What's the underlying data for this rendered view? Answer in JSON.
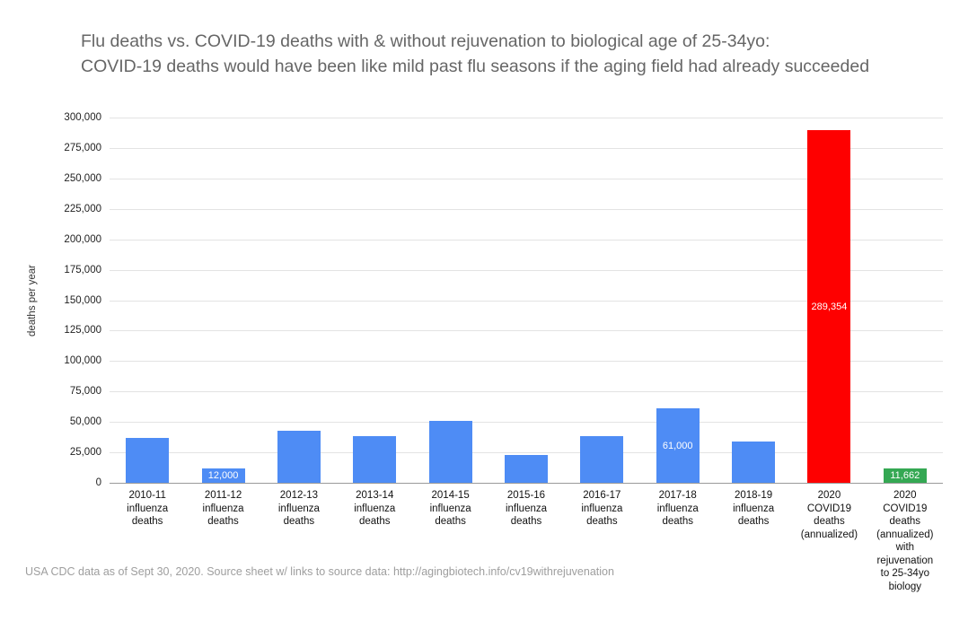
{
  "chart_data": {
    "type": "bar",
    "title_line1": "Flu deaths vs. COVID-19 deaths with & without rejuvenation to biological age of 25-34yo:",
    "title_line2": "COVID-19 deaths would have been like mild past flu seasons if the aging field had already succeeded",
    "ylabel": "deaths per year",
    "ylim": [
      0,
      300000
    ],
    "ytick_step": 25000,
    "ytick_labels": [
      "0",
      "25,000",
      "50,000",
      "75,000",
      "100,000",
      "125,000",
      "150,000",
      "175,000",
      "200,000",
      "225,000",
      "250,000",
      "275,000",
      "300,000"
    ],
    "grid": true,
    "legend": "none",
    "categories": [
      "2010-11\ninfluenza\ndeaths",
      "2011-12\ninfluenza\ndeaths",
      "2012-13\ninfluenza\ndeaths",
      "2013-14\ninfluenza\ndeaths",
      "2014-15\ninfluenza\ndeaths",
      "2015-16\ninfluenza\ndeaths",
      "2016-17\ninfluenza\ndeaths",
      "2017-18\ninfluenza\ndeaths",
      "2018-19\ninfluenza\ndeaths",
      "2020\nCOVID19\ndeaths\n(annualized)",
      "2020\nCOVID19\ndeaths\n(annualized)\nwith\nrejuvenation\nto 25-34yo\nbiology"
    ],
    "values": [
      37000,
      12000,
      43000,
      38000,
      51000,
      23000,
      38000,
      61000,
      34200,
      289354,
      11662
    ],
    "data_labels": [
      "",
      "12,000",
      "",
      "",
      "",
      "",
      "",
      "61,000",
      "",
      "289,354",
      "11,662"
    ],
    "bar_colors": [
      "#4e8cf5",
      "#4e8cf5",
      "#4e8cf5",
      "#4e8cf5",
      "#4e8cf5",
      "#4e8cf5",
      "#4e8cf5",
      "#4e8cf5",
      "#4e8cf5",
      "#fe0000",
      "#34a853"
    ],
    "colors": {
      "flu_bar": "#4e8cf5",
      "covid_bar": "#fe0000",
      "rejuvenation_bar": "#34a853",
      "title_text": "#666666",
      "gridline": "#e3e3e3",
      "data_label_text": "#ffffff"
    }
  },
  "footer": {
    "source_note": "USA CDC data as of Sept 30, 2020. Source sheet w/ links to source data: http://agingbiotech.info/cv19withrejuvenation"
  }
}
